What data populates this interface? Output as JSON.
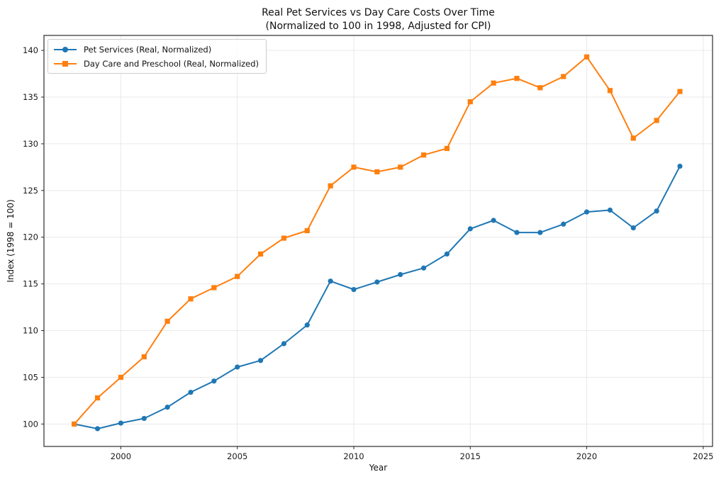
{
  "chart_data": {
    "type": "line",
    "title": "Real Pet Services vs Day Care Costs Over Time",
    "subtitle": "(Normalized to 100 in 1998, Adjusted for CPI)",
    "xlabel": "Year",
    "ylabel": "Index (1998 = 100)",
    "x": [
      1998,
      1999,
      2000,
      2001,
      2002,
      2003,
      2004,
      2005,
      2006,
      2007,
      2008,
      2009,
      2010,
      2011,
      2012,
      2013,
      2014,
      2015,
      2016,
      2017,
      2018,
      2019,
      2020,
      2021,
      2022,
      2023,
      2024
    ],
    "series": [
      {
        "name": "Pet Services (Real, Normalized)",
        "color": "#1f77b4",
        "marker": "circle",
        "values": [
          100.0,
          99.5,
          100.1,
          100.6,
          101.8,
          103.4,
          104.6,
          106.1,
          106.8,
          108.6,
          110.6,
          115.3,
          114.4,
          115.2,
          116.0,
          116.7,
          118.2,
          120.9,
          121.8,
          120.5,
          120.5,
          121.4,
          122.7,
          122.9,
          121.0,
          122.8,
          127.6
        ]
      },
      {
        "name": "Day Care and Preschool (Real, Normalized)",
        "color": "#ff7f0e",
        "marker": "square",
        "values": [
          100.0,
          102.8,
          105.0,
          107.2,
          111.0,
          113.4,
          114.6,
          115.8,
          118.2,
          119.9,
          120.7,
          125.5,
          127.5,
          127.0,
          127.5,
          128.8,
          129.5,
          134.5,
          136.5,
          137.0,
          136.0,
          137.2,
          139.3,
          135.7,
          130.6,
          132.5,
          135.6
        ]
      }
    ],
    "xlim": [
      1996.7,
      2025.4
    ],
    "ylim": [
      97.6,
      141.6
    ],
    "x_ticks": [
      2000,
      2005,
      2010,
      2015,
      2020,
      2025
    ],
    "y_ticks": [
      100,
      105,
      110,
      115,
      120,
      125,
      130,
      135,
      140
    ],
    "grid": true,
    "legend_position": "upper left",
    "grid_color": "#e9e9e9",
    "spine_color": "#2b2b2b",
    "tick_label_color": "#1a1a1a"
  }
}
